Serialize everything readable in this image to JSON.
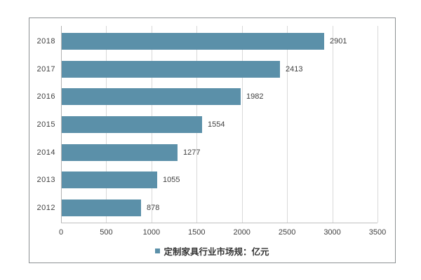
{
  "chart_data": {
    "type": "bar",
    "orientation": "horizontal",
    "categories": [
      "2018",
      "2017",
      "2016",
      "2015",
      "2014",
      "2013",
      "2012"
    ],
    "values": [
      2901,
      2413,
      1982,
      1554,
      1277,
      1055,
      878
    ],
    "xlim": [
      0,
      3500
    ],
    "x_ticks": [
      "0",
      "500",
      "1000",
      "1500",
      "2000",
      "2500",
      "3000",
      "3500"
    ],
    "title": "",
    "xlabel": "",
    "ylabel": "",
    "grid": true,
    "legend": "定制家具行业市场规：亿元",
    "legend_position": "bottom",
    "bar_color": "#5b90a9",
    "gridline_color": "#d9d9d9",
    "zero_line_color": "#b3b3b3",
    "axis_line_color": "#bfbfbf",
    "frame_border_color": "#8c9093",
    "text_color": "#404040"
  }
}
